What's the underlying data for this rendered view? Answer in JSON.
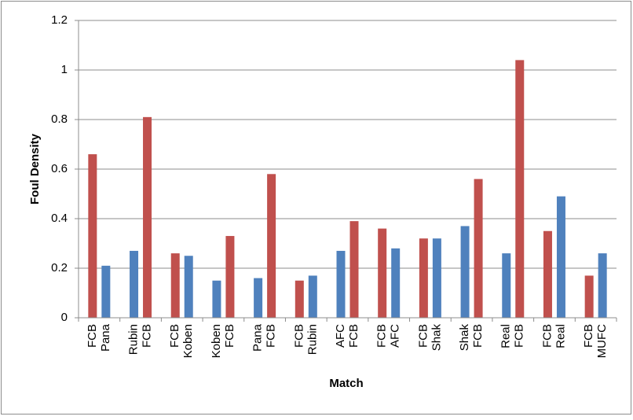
{
  "chart_data": {
    "type": "grouped-bar",
    "y_label": "Foul Density",
    "x_label": "Match",
    "groups": [
      {
        "labels": [
          "FCB",
          "Pana"
        ],
        "values": [
          0.66,
          0.21
        ],
        "colors": [
          "#c0504d",
          "#4f81bd"
        ]
      },
      {
        "labels": [
          "Rubin",
          "FCB"
        ],
        "values": [
          0.27,
          0.81
        ],
        "colors": [
          "#4f81bd",
          "#c0504d"
        ]
      },
      {
        "labels": [
          "FCB",
          "Koben"
        ],
        "values": [
          0.26,
          0.25
        ],
        "colors": [
          "#c0504d",
          "#4f81bd"
        ]
      },
      {
        "labels": [
          "Koben",
          "FCB"
        ],
        "values": [
          0.15,
          0.33
        ],
        "colors": [
          "#4f81bd",
          "#c0504d"
        ]
      },
      {
        "labels": [
          "Pana",
          "FCB"
        ],
        "values": [
          0.16,
          0.58
        ],
        "colors": [
          "#4f81bd",
          "#c0504d"
        ]
      },
      {
        "labels": [
          "FCB",
          "Rubin"
        ],
        "values": [
          0.15,
          0.17
        ],
        "colors": [
          "#c0504d",
          "#4f81bd"
        ]
      },
      {
        "labels": [
          "AFC",
          "FCB"
        ],
        "values": [
          0.27,
          0.39
        ],
        "colors": [
          "#4f81bd",
          "#c0504d"
        ]
      },
      {
        "labels": [
          "FCB",
          "AFC"
        ],
        "values": [
          0.36,
          0.28
        ],
        "colors": [
          "#c0504d",
          "#4f81bd"
        ]
      },
      {
        "labels": [
          "FCB",
          "Shak"
        ],
        "values": [
          0.32,
          0.32
        ],
        "colors": [
          "#c0504d",
          "#4f81bd"
        ]
      },
      {
        "labels": [
          "Shak",
          "FCB"
        ],
        "values": [
          0.37,
          0.56
        ],
        "colors": [
          "#4f81bd",
          "#c0504d"
        ]
      },
      {
        "labels": [
          "Real",
          "FCB"
        ],
        "values": [
          0.26,
          1.04
        ],
        "colors": [
          "#4f81bd",
          "#c0504d"
        ]
      },
      {
        "labels": [
          "FCB",
          "Real"
        ],
        "values": [
          0.35,
          0.49
        ],
        "colors": [
          "#c0504d",
          "#4f81bd"
        ]
      },
      {
        "labels": [
          "FCB",
          "MUFC"
        ],
        "values": [
          0.17,
          0.26
        ],
        "colors": [
          "#c0504d",
          "#4f81bd"
        ]
      }
    ],
    "ylim": [
      0,
      1.2
    ],
    "yticks": [
      0,
      0.2,
      0.4,
      0.6,
      0.8,
      1,
      1.2
    ],
    "grid": true
  }
}
